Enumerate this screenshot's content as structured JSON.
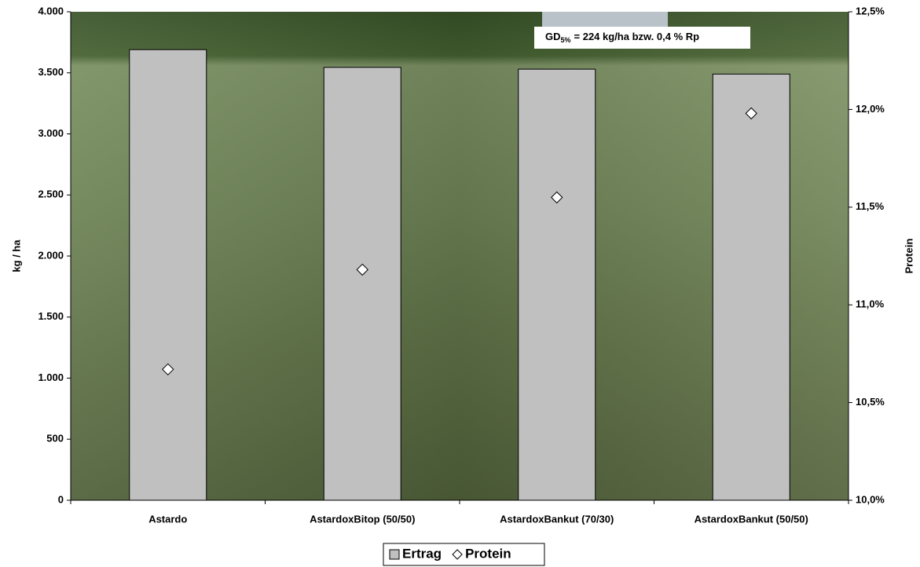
{
  "chart_data": {
    "type": "bar",
    "categories": [
      "Astardo",
      "AstardoxBitop (50/50)",
      "AstardoxBankut (70/30)",
      "AstardoxBankut (50/50)"
    ],
    "series": [
      {
        "name": "Ertrag",
        "color": "#c0c0c0",
        "values": [
          3690,
          3545,
          3530,
          3490
        ]
      },
      {
        "name": "Protein",
        "type": "scatter",
        "marker": "diamond",
        "color": "#ffffff",
        "axis": "y2",
        "values": [
          10.67,
          11.18,
          11.55,
          11.98
        ]
      }
    ],
    "ylabel": "kg / ha",
    "y2label": "Protein",
    "ylim": [
      0,
      4000
    ],
    "yticks": [
      {
        "value": 0,
        "label": "0"
      },
      {
        "value": 500,
        "label": "500"
      },
      {
        "value": 1000,
        "label": "1.000"
      },
      {
        "value": 1500,
        "label": "1.500"
      },
      {
        "value": 2000,
        "label": "2.000"
      },
      {
        "value": 2500,
        "label": "2.500"
      },
      {
        "value": 3000,
        "label": "3.000"
      },
      {
        "value": 3500,
        "label": "3.500"
      },
      {
        "value": 4000,
        "label": "4.000"
      }
    ],
    "y2lim": [
      10,
      12.5
    ],
    "y2ticks": [
      {
        "value": 10,
        "label": "10,0%"
      },
      {
        "value": 10.5,
        "label": "10,5%"
      },
      {
        "value": 11,
        "label": "11,0%"
      },
      {
        "value": 11.5,
        "label": "11,5%"
      },
      {
        "value": 12,
        "label": "12,0%"
      },
      {
        "value": 12.5,
        "label": "12,5%"
      }
    ],
    "annotation": {
      "main": "GD",
      "sub": "5%",
      "rest": "= 224 kg/ha bzw. 0,4 % Rp"
    },
    "legend": "bottom"
  }
}
